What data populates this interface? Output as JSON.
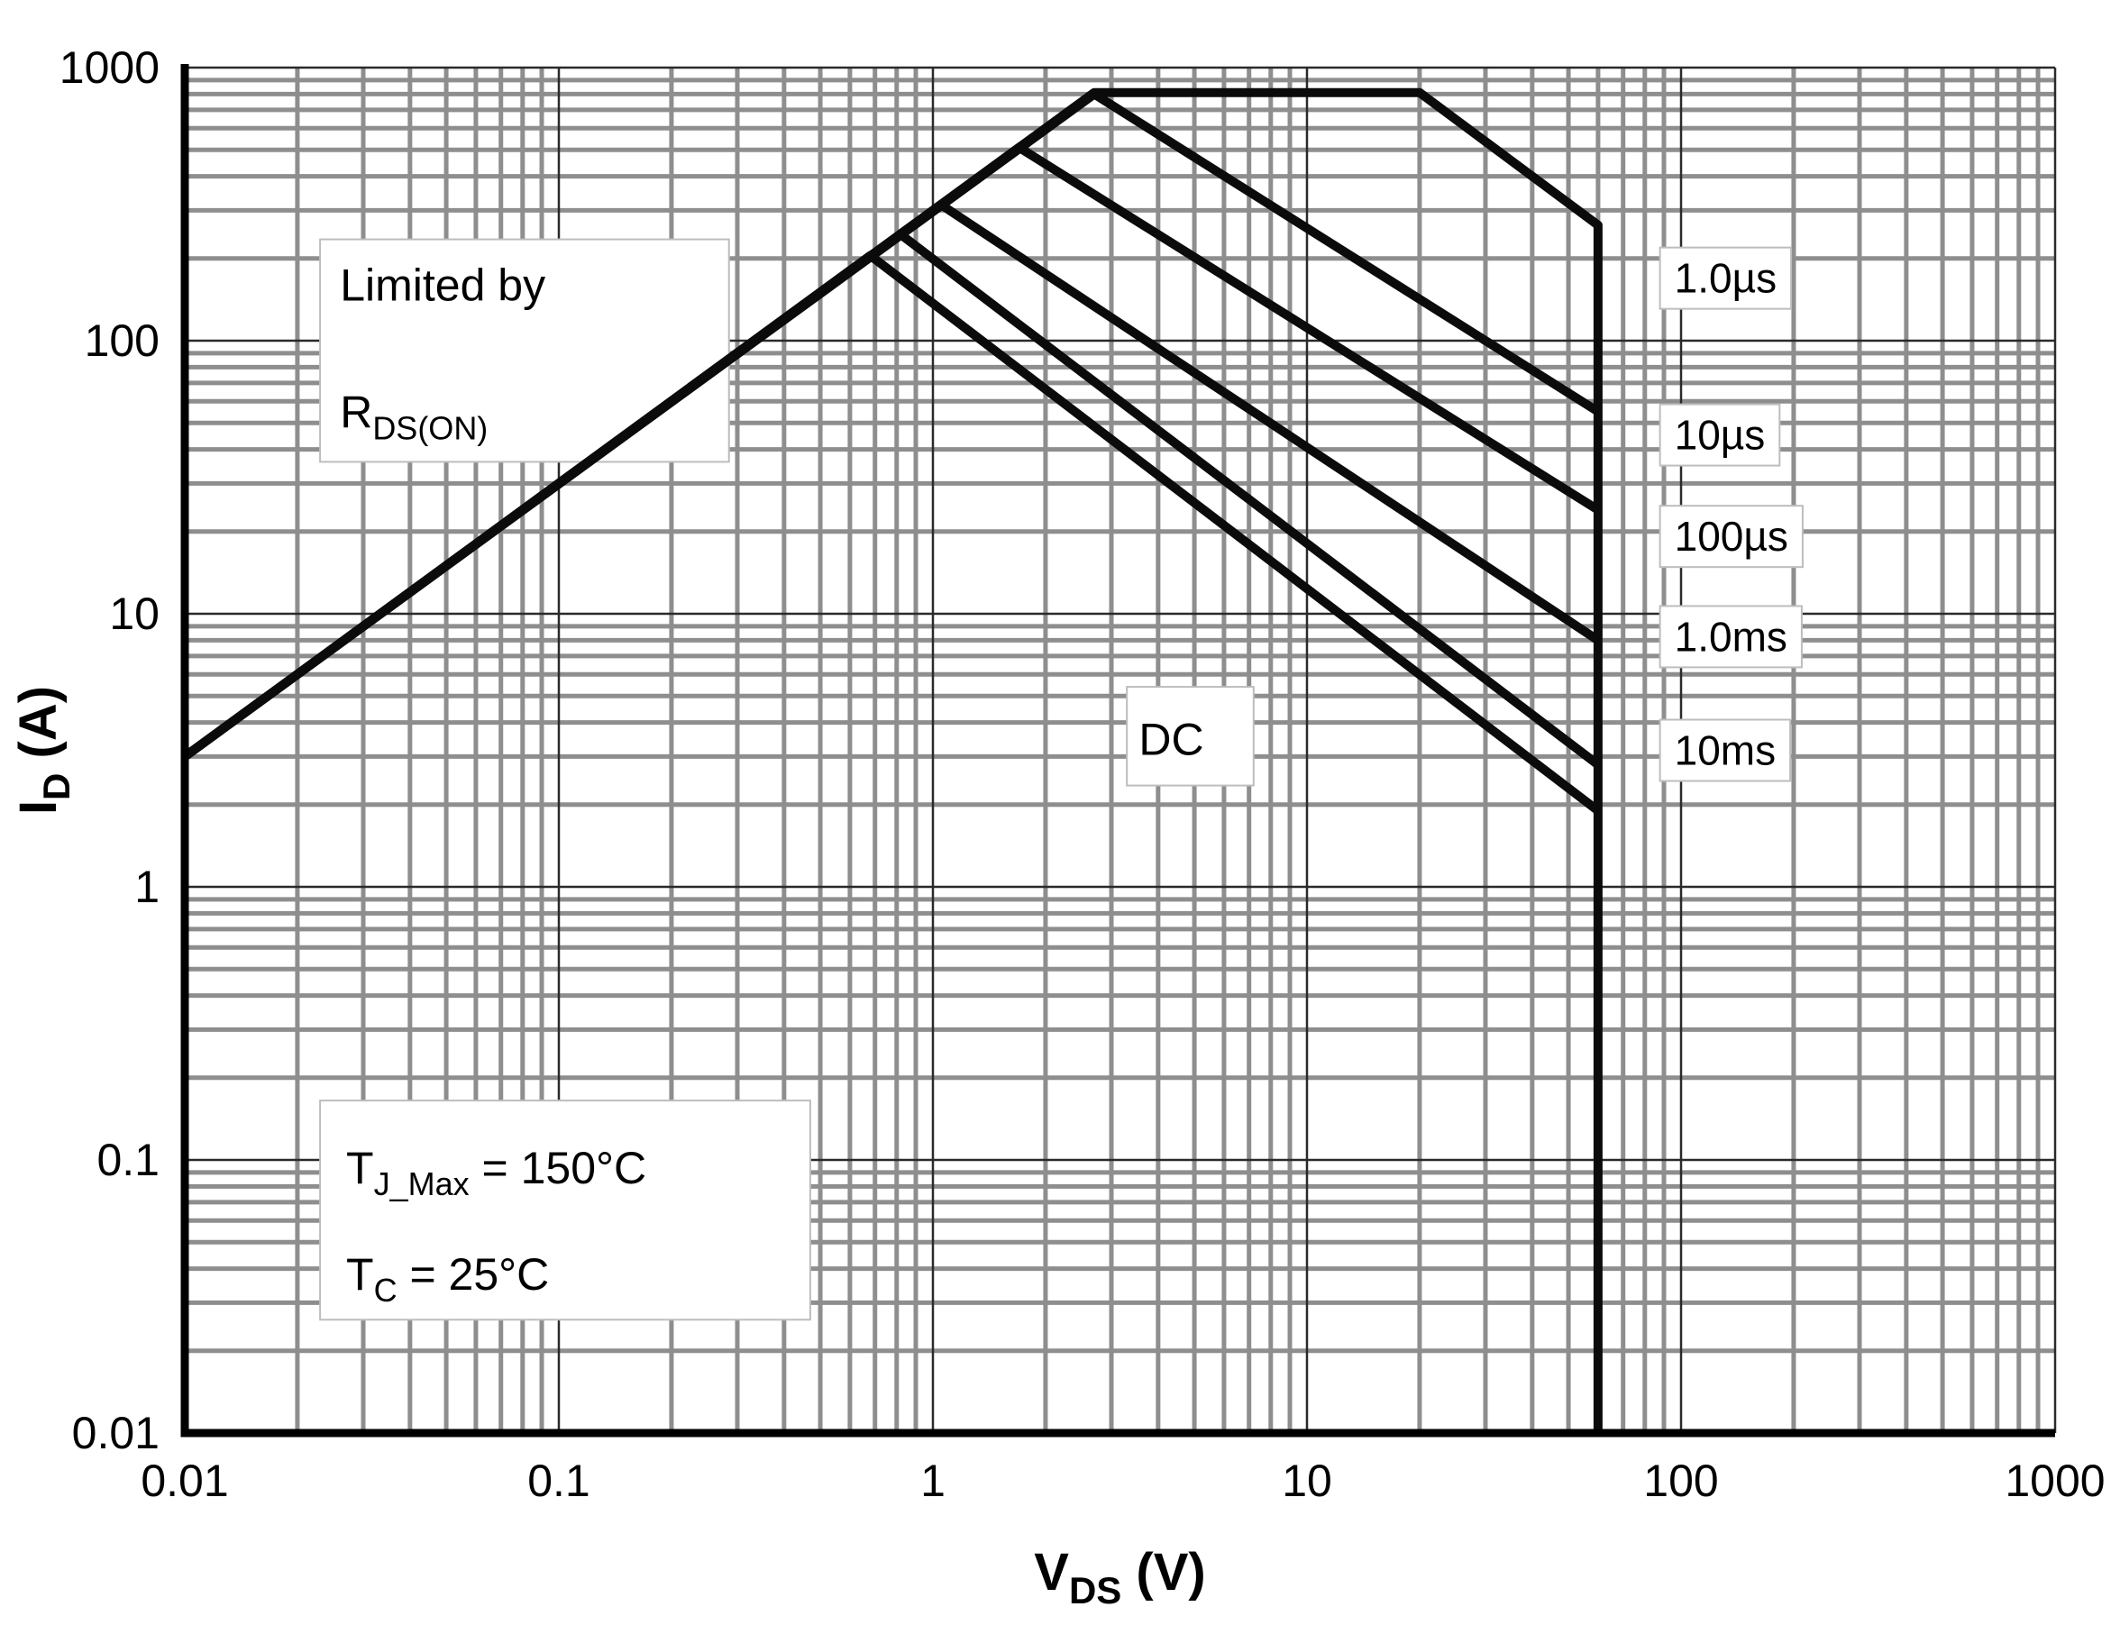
{
  "figure": {
    "background": "#ffffff",
    "text_color": "#000000",
    "grid_minor_color": "#8e8e8e",
    "grid_major_color": "#2a2a2a",
    "curve_color": "#0b0b0b",
    "axis_color": "#000000",
    "label_box_fill": "#ffffff",
    "label_box_border": "#bdbdbd"
  },
  "chart_data": {
    "type": "line",
    "x_scale": "log",
    "y_scale": "log",
    "xlim": [
      0.01,
      1000
    ],
    "ylim": [
      0.01,
      1000
    ],
    "grid": "log major+minor",
    "legend_position": "right-inside",
    "xlabel": {
      "base": "V",
      "sub": "DS",
      "rest": " (V)"
    },
    "ylabel": {
      "base": "I",
      "sub": "D",
      "rest": " (A)"
    },
    "x_ticks": [
      "0.01",
      "0.1",
      "1",
      "10",
      "100",
      "1000"
    ],
    "y_ticks": [
      "1000",
      "100",
      "10",
      "1",
      "0.1",
      "0.01"
    ],
    "series": [
      {
        "name": "1us",
        "label": "1.0µs",
        "points": [
          [
            0.01,
            3
          ],
          [
            2.7,
            810
          ],
          [
            20,
            810
          ],
          [
            60,
            265
          ],
          [
            60,
            0.01
          ]
        ]
      },
      {
        "name": "10us",
        "label": "10µs",
        "points": [
          [
            0.01,
            3
          ],
          [
            2.7,
            800
          ],
          [
            60,
            55
          ]
        ]
      },
      {
        "name": "100us",
        "label": "100µs",
        "points": [
          [
            0.01,
            3
          ],
          [
            1.7,
            510
          ],
          [
            60,
            24
          ]
        ]
      },
      {
        "name": "1ms",
        "label": "1.0ms",
        "points": [
          [
            0.01,
            3
          ],
          [
            1.05,
            315
          ],
          [
            60,
            8
          ]
        ]
      },
      {
        "name": "10ms",
        "label": "10ms",
        "points": [
          [
            0.01,
            3
          ],
          [
            0.82,
            245
          ],
          [
            60,
            2.8
          ]
        ]
      },
      {
        "name": "dc",
        "label": "DC",
        "points": [
          [
            0.01,
            3
          ],
          [
            0.68,
            205
          ],
          [
            60,
            1.9
          ]
        ]
      }
    ],
    "curve_labels": [
      {
        "name": "1us",
        "text": "1.0µs",
        "x": 96,
        "y": 150
      },
      {
        "name": "10us",
        "text": "10µs",
        "x": 96,
        "y": 40
      },
      {
        "name": "100us",
        "text": "100µs",
        "x": 96,
        "y": 17
      },
      {
        "name": "1ms",
        "text": "1.0ms",
        "x": 96,
        "y": 7.3
      },
      {
        "name": "10ms",
        "text": "10ms",
        "x": 96,
        "y": 2.8
      }
    ],
    "annotations": [
      {
        "name": "annotation-limited-by-rdson",
        "box": {
          "x1": 0.023,
          "x2": 0.285,
          "ytop": 235,
          "ybottom": 36
        },
        "lines": [
          {
            "x": 0.026,
            "y": 140,
            "segments": [
              {
                "t": "Limited by"
              }
            ]
          },
          {
            "x": 0.026,
            "y": 48,
            "segments": [
              {
                "t": "R"
              },
              {
                "t": "DS(ON)",
                "sub": true
              }
            ]
          }
        ]
      },
      {
        "name": "annotation-temperatures",
        "box": {
          "x1": 0.023,
          "x2": 0.47,
          "ytop": 0.165,
          "ybottom": 0.026
        },
        "lines": [
          {
            "x": 0.027,
            "y": 0.082,
            "segments": [
              {
                "t": "T"
              },
              {
                "t": "J_Max",
                "sub": true
              },
              {
                "t": " = 150°C"
              }
            ]
          },
          {
            "x": 0.027,
            "y": 0.0335,
            "segments": [
              {
                "t": "T"
              },
              {
                "t": "C",
                "sub": true
              },
              {
                "t": " = 25°C"
              }
            ]
          }
        ]
      },
      {
        "name": "annotation-dc",
        "box": {
          "x1": 3.3,
          "x2": 7.2,
          "ytop": 5.4,
          "ybottom": 2.35
        },
        "lines": [
          {
            "x": 3.55,
            "y": 3.05,
            "segments": [
              {
                "t": "DC"
              }
            ]
          }
        ]
      }
    ]
  }
}
